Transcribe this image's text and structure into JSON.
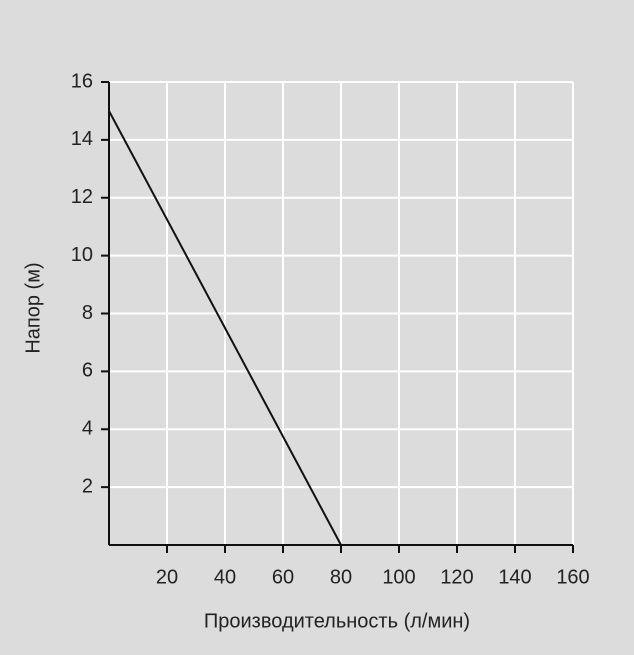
{
  "chart_data": {
    "type": "line",
    "x": [
      0,
      80
    ],
    "values": [
      15,
      0
    ],
    "color": "#111111",
    "xlabel": "Производительность (л/мин)",
    "ylabel": "Напор (м)",
    "xlim": [
      0,
      160
    ],
    "ylim": [
      0,
      16
    ],
    "xticks": [
      20,
      40,
      60,
      80,
      100,
      120,
      140,
      160
    ],
    "yticks": [
      2,
      4,
      6,
      8,
      10,
      12,
      14,
      16
    ],
    "grid": true
  }
}
